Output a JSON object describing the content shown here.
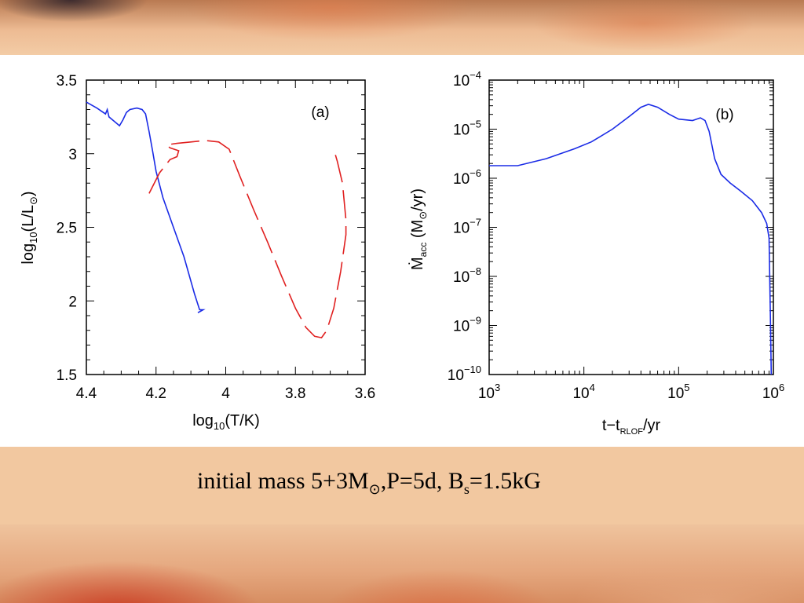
{
  "caption": {
    "prefix": "initial mass 5+3M",
    "sun_symbol": "⊙",
    "middle": ",P=5d, B",
    "sub_s": "s",
    "suffix": "=1.5kG"
  },
  "colors": {
    "blue": "#1a2be6",
    "red": "#e02020",
    "axis": "#000000"
  },
  "chart_data": [
    {
      "type": "line",
      "panel_label": "(a)",
      "xlabel_main": "log",
      "xlabel_sub": "10",
      "xlabel_rest": "(T/K)",
      "ylabel_main": "log",
      "ylabel_sub": "10",
      "ylabel_rest": "(L/L",
      "ylabel_sun": "⊙",
      "ylabel_close": ")",
      "xlim": [
        4.4,
        3.6
      ],
      "ylim": [
        1.5,
        3.5
      ],
      "x_ticks": [
        4.4,
        4.2,
        4.0,
        3.8,
        3.6
      ],
      "x_tick_labels": [
        "4.4",
        "4.2",
        "4",
        "3.8",
        "3.6"
      ],
      "y_ticks": [
        1.5,
        2.0,
        2.5,
        3.0,
        3.5
      ],
      "y_tick_labels": [
        "1.5",
        "2",
        "2.5",
        "3",
        "3.5"
      ],
      "series": [
        {
          "color": "blue",
          "dash": "solid",
          "points": [
            [
              4.4,
              3.35
            ],
            [
              4.37,
              3.31
            ],
            [
              4.345,
              3.27
            ],
            [
              4.34,
              3.3
            ],
            [
              4.335,
              3.25
            ],
            [
              4.32,
              3.22
            ],
            [
              4.305,
              3.19
            ],
            [
              4.295,
              3.23
            ],
            [
              4.285,
              3.28
            ],
            [
              4.275,
              3.3
            ],
            [
              4.255,
              3.31
            ],
            [
              4.24,
              3.3
            ],
            [
              4.23,
              3.27
            ],
            [
              4.22,
              3.15
            ],
            [
              4.21,
              3.02
            ],
            [
              4.2,
              2.88
            ],
            [
              4.18,
              2.7
            ],
            [
              4.15,
              2.5
            ],
            [
              4.12,
              2.3
            ],
            [
              4.09,
              2.05
            ],
            [
              4.075,
              1.94
            ],
            [
              4.065,
              1.94
            ],
            [
              4.08,
              1.92
            ]
          ]
        },
        {
          "color": "red",
          "dash": "dashed",
          "points": [
            [
              4.22,
              2.73
            ],
            [
              4.19,
              2.87
            ],
            [
              4.16,
              2.96
            ],
            [
              4.14,
              2.98
            ],
            [
              4.135,
              3.02
            ],
            [
              4.16,
              3.04
            ],
            [
              4.17,
              3.06
            ],
            [
              4.14,
              3.07
            ],
            [
              4.1,
              3.08
            ],
            [
              4.06,
              3.09
            ],
            [
              4.02,
              3.08
            ],
            [
              3.99,
              3.03
            ],
            [
              3.96,
              2.85
            ],
            [
              3.92,
              2.62
            ],
            [
              3.88,
              2.4
            ],
            [
              3.84,
              2.17
            ],
            [
              3.8,
              1.95
            ],
            [
              3.77,
              1.82
            ],
            [
              3.745,
              1.76
            ],
            [
              3.725,
              1.75
            ],
            [
              3.71,
              1.8
            ],
            [
              3.69,
              1.95
            ],
            [
              3.67,
              2.2
            ],
            [
              3.655,
              2.45
            ],
            [
              3.655,
              2.55
            ],
            [
              3.665,
              2.8
            ],
            [
              3.68,
              2.95
            ],
            [
              3.69,
              3.03
            ]
          ]
        }
      ]
    },
    {
      "type": "line",
      "panel_label": "(b)",
      "xlabel_main": "t−t",
      "xlabel_sub": "RLOF",
      "xlabel_rest": "/yr",
      "ylabel_main": "Ṁ",
      "ylabel_sub": "acc",
      "ylabel_rest": " (M",
      "ylabel_sun": "⊙",
      "ylabel_close": "/yr)",
      "xscale": "log",
      "yscale": "log",
      "xlim": [
        1000,
        1000000
      ],
      "ylim": [
        1e-10,
        0.0001
      ],
      "x_tick_bases": [
        "10",
        "10",
        "10",
        "10"
      ],
      "x_tick_exps": [
        "3",
        "4",
        "5",
        "6"
      ],
      "y_tick_bases": [
        "10",
        "10",
        "10",
        "10",
        "10",
        "10",
        "10"
      ],
      "y_tick_exps": [
        "−10",
        "−9",
        "−8",
        "−7",
        "−6",
        "−5",
        "−4"
      ],
      "series": [
        {
          "color": "blue",
          "dash": "solid",
          "points": [
            [
              1000,
              1.8e-06
            ],
            [
              2000,
              1.8e-06
            ],
            [
              4000,
              2.5e-06
            ],
            [
              8000,
              4e-06
            ],
            [
              12000,
              5.5e-06
            ],
            [
              20000,
              1e-05
            ],
            [
              30000,
              1.8e-05
            ],
            [
              40000,
              2.8e-05
            ],
            [
              48000,
              3.2e-05
            ],
            [
              60000,
              2.8e-05
            ],
            [
              80000,
              2e-05
            ],
            [
              100000,
              1.6e-05
            ],
            [
              140000,
              1.5e-05
            ],
            [
              170000,
              1.7e-05
            ],
            [
              190000,
              1.5e-05
            ],
            [
              210000,
              9e-06
            ],
            [
              240000,
              2.5e-06
            ],
            [
              280000,
              1.2e-06
            ],
            [
              350000,
              8e-07
            ],
            [
              450000,
              5.5e-07
            ],
            [
              600000,
              3.5e-07
            ],
            [
              750000,
              2e-07
            ],
            [
              850000,
              1.2e-07
            ],
            [
              900000,
              6e-08
            ],
            [
              930000,
              1.5e-09
            ],
            [
              950000,
              1e-10
            ]
          ]
        }
      ]
    }
  ]
}
